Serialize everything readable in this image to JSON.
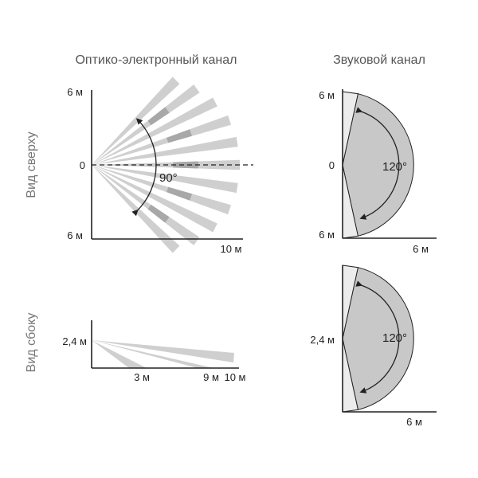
{
  "titles": {
    "optical": "Оптико-электронный канал",
    "sound": "Звуковой канал"
  },
  "side_labels": {
    "top_view": "Вид сверху",
    "side_view": "Вид сбоку"
  },
  "optical_top": {
    "y_top": "6 м",
    "y_mid": "0",
    "y_bottom": "6 м",
    "x_end": "10 м",
    "angle": "90°"
  },
  "optical_side": {
    "y_label": "2,4 м",
    "x_3": "3 м",
    "x_9": "9 м",
    "x_10": "10 м"
  },
  "sound_top": {
    "y_top": "6 м",
    "y_mid": "0",
    "y_bottom": "6 м",
    "x_end": "6 м",
    "angle": "120°"
  },
  "sound_side": {
    "y_label": "2,4 м",
    "x_end": "6 м",
    "angle": "120°"
  },
  "colors": {
    "beam_light": "#cfcfcf",
    "beam_dark": "#a8a8a8",
    "zone_fill": "#c8c8c8",
    "near_fill": "#ececec",
    "axis": "#222222"
  }
}
